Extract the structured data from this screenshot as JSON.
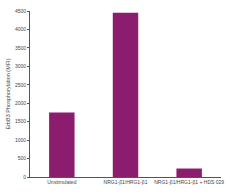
{
  "chart_data": {
    "type": "bar",
    "y_label": "ErbB3 Phosphorylation (MFI)",
    "categories": [
      "Unstimulated",
      "NRG1-β1/HRG1-β1",
      "NRG1-β1/HRG1-β1 + HDS 029"
    ],
    "values": [
      1750,
      4450,
      230
    ],
    "color": "#8c1d6e",
    "ylim": [
      0,
      4500
    ],
    "yticks": [
      0,
      500,
      1000,
      1500,
      2000,
      2500,
      3000,
      3500,
      4000,
      4500
    ],
    "grid": false
  }
}
